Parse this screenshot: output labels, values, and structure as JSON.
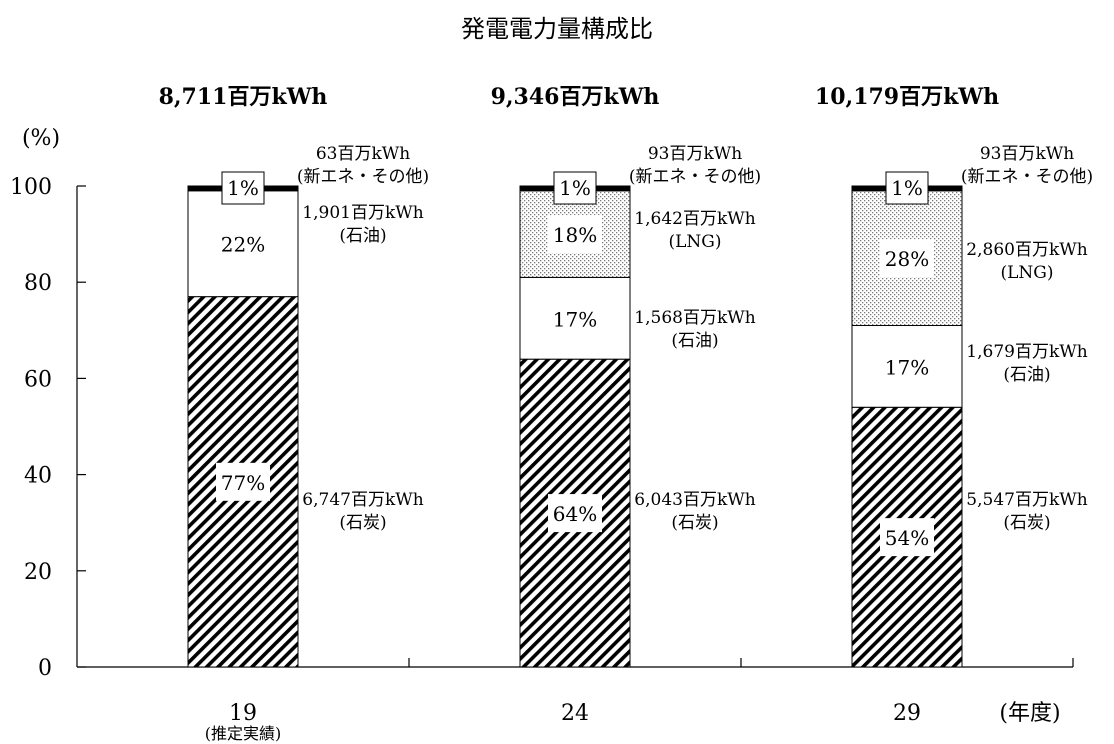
{
  "chart_data": {
    "type": "bar",
    "stacked": true,
    "title": "発電電力量構成比",
    "yaxis_label": "(%)",
    "xaxis_unit": "(年度)",
    "ylim": [
      0,
      100
    ],
    "yticks": [
      "0",
      "20",
      "40",
      "60",
      "80",
      "100"
    ],
    "grid": false,
    "categories": [
      {
        "label": "19",
        "sublabel": "(推定実績)",
        "total": "8,711百万kWh"
      },
      {
        "label": "24",
        "sublabel": "",
        "total": "9,346百万kWh"
      },
      {
        "label": "29",
        "sublabel": "",
        "total": "10,179百万kWh"
      }
    ],
    "series": [
      {
        "key": "coal",
        "fill": "diagonal-hatch",
        "values": [
          77,
          64,
          54
        ],
        "labels": [
          "77%",
          "64%",
          "54%"
        ],
        "amounts": [
          "6,747百万kWh",
          "6,043百万kWh",
          "5,547百万kWh"
        ],
        "names": [
          "(石炭)",
          "(石炭)",
          "(石炭)"
        ]
      },
      {
        "key": "oil",
        "fill": "white",
        "values": [
          22,
          17,
          17
        ],
        "labels": [
          "22%",
          "17%",
          "17%"
        ],
        "amounts": [
          "1,901百万kWh",
          "1,568百万kWh",
          "1,679百万kWh"
        ],
        "names": [
          "(石油)",
          "(石油)",
          "(石油)"
        ]
      },
      {
        "key": "lng",
        "fill": "dotted",
        "values": [
          0,
          18,
          28
        ],
        "labels": [
          "",
          "18%",
          "28%"
        ],
        "amounts": [
          "",
          "1,642百万kWh",
          "2,860百万kWh"
        ],
        "names": [
          "",
          "(LNG)",
          "(LNG)"
        ]
      },
      {
        "key": "other",
        "fill": "black",
        "values": [
          1,
          1,
          1
        ],
        "labels": [
          "1%",
          "1%",
          "1%"
        ],
        "amounts": [
          "63百万kWh",
          "93百万kWh",
          "93百万kWh"
        ],
        "names": [
          "(新エネ・その他)",
          "(新エネ・その他)",
          "(新エネ・その他)"
        ]
      }
    ]
  }
}
